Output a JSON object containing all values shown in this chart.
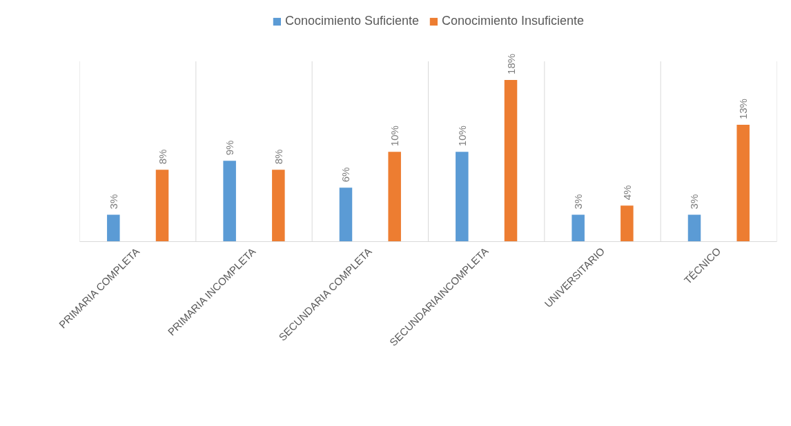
{
  "chart_data": {
    "type": "bar",
    "categories": [
      "PRIMARIA COMPLETA",
      "PRIMARIA INCOMPLETA",
      "SECUNDARIA COMPLETA",
      "SECUNDARIAINCOMPLETA",
      "UNIVERSITARIO",
      "TÉCNICO"
    ],
    "series": [
      {
        "name": "Conocimiento Suficiente",
        "color": "#5b9bd5",
        "values": [
          3,
          9,
          6,
          10,
          3,
          3
        ],
        "value_labels": [
          "3%",
          "9%",
          "6%",
          "10%",
          "3%",
          "3%"
        ]
      },
      {
        "name": "Conocimiento Insuficiente",
        "color": "#ed7d31",
        "values": [
          8,
          8,
          10,
          18,
          4,
          13
        ],
        "value_labels": [
          "8%",
          "8%",
          "10%",
          "18%",
          "4%",
          "13%"
        ]
      }
    ],
    "grid": "x",
    "legend": "top"
  }
}
